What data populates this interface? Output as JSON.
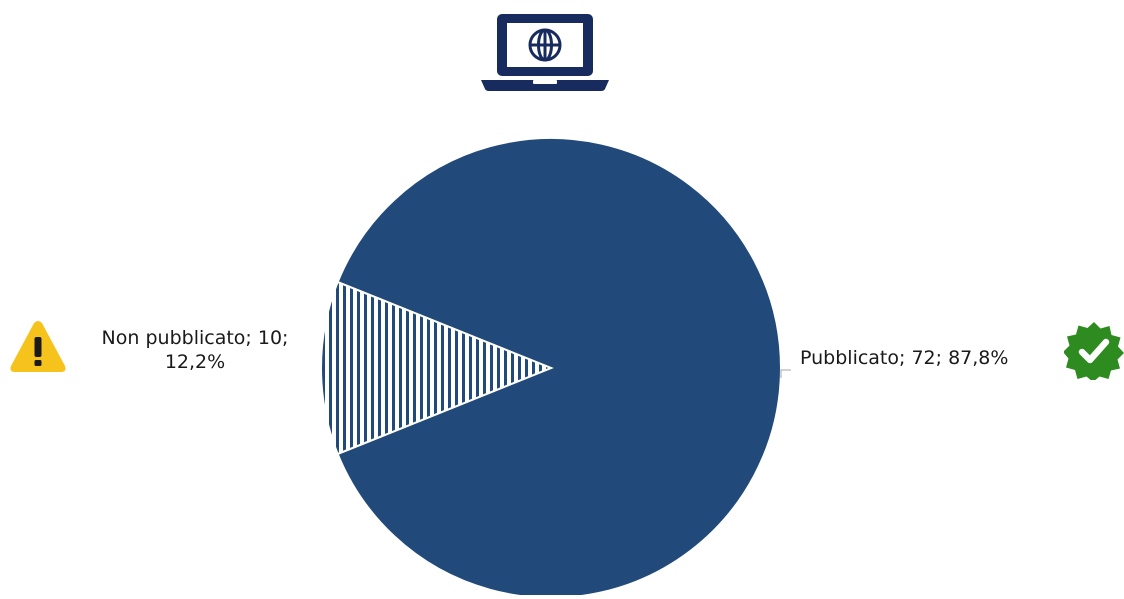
{
  "chart_data": {
    "type": "pie",
    "slices": [
      {
        "label": "Pubblicato",
        "value": 72,
        "percent": "87,8%",
        "color": "#214a7b",
        "pattern": "solid"
      },
      {
        "label": "Non pubblicato",
        "value": 10,
        "percent": "12,2%",
        "color": "#214a7b",
        "pattern": "vertical-stripes"
      }
    ],
    "data_labels": {
      "pubblicato": "Pubblicato; 72; 87,8%",
      "non_pubblicato_line1": "Non pubblicato; 10;",
      "non_pubblicato_line2": "12,2%"
    }
  },
  "icons": {
    "top": "laptop-globe-icon",
    "left": "warning-icon",
    "right": "verified-check-icon"
  },
  "colors": {
    "slice_fill": "#214a7b",
    "laptop": "#172b5e",
    "warning": "#f6c21c",
    "verified": "#2e8b1f"
  }
}
